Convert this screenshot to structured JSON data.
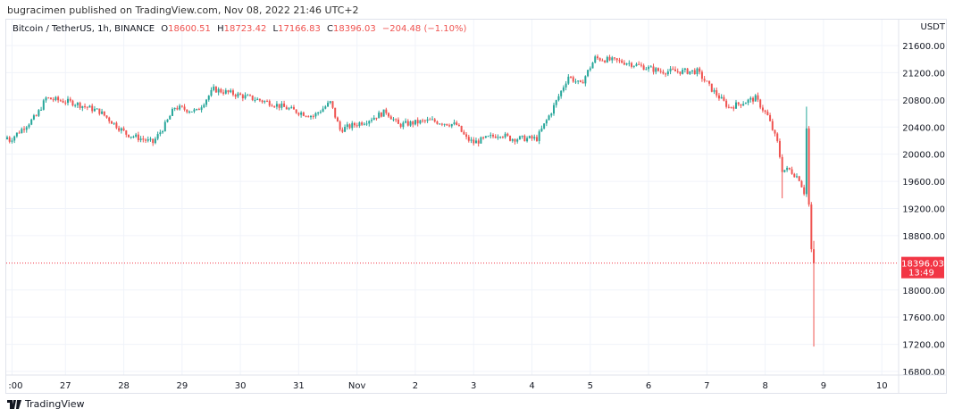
{
  "header": {
    "published": "bugracimen published on TradingView.com, Nov 08, 2022 21:46 UTC+2"
  },
  "legend": {
    "symbol": "Bitcoin / TetherUS, 1h, BINANCE",
    "o_label": "O",
    "o": "18600.51",
    "h_label": "H",
    "h": "18723.42",
    "l_label": "L",
    "l": "17166.83",
    "c_label": "C",
    "c": "18396.03",
    "change": "−204.48 (−1.10%)"
  },
  "footer": {
    "brand": "TradingView"
  },
  "colors": {
    "up": "#26a69a",
    "down": "#ef5350",
    "grid": "#f0f3fa",
    "last": "#f23645"
  },
  "chart_data": {
    "type": "candlestick",
    "interval": "1h",
    "currency": "USDT",
    "ylim": [
      16800,
      21800
    ],
    "yticks": [
      21600,
      21200,
      20800,
      20400,
      20000,
      19600,
      19200,
      18800,
      18000,
      17600,
      17200,
      16800
    ],
    "ytick_labels": [
      "21600.00",
      "21200.00",
      "20800.00",
      "20400.00",
      "20000.00",
      "19600.00",
      "19200.00",
      "18800.00",
      "18000.00",
      "17600.00",
      "17200.00",
      "16800.00"
    ],
    "xticks": [
      {
        "hour": 2,
        "label": ":00"
      },
      {
        "hour": 24,
        "label": "27"
      },
      {
        "hour": 48,
        "label": "28"
      },
      {
        "hour": 72,
        "label": "29"
      },
      {
        "hour": 96,
        "label": "30"
      },
      {
        "hour": 120,
        "label": "31"
      },
      {
        "hour": 144,
        "label": "Nov"
      },
      {
        "hour": 168,
        "label": "2"
      },
      {
        "hour": 192,
        "label": "3"
      },
      {
        "hour": 216,
        "label": "4"
      },
      {
        "hour": 240,
        "label": "5"
      },
      {
        "hour": 264,
        "label": "6"
      },
      {
        "hour": 288,
        "label": "7"
      },
      {
        "hour": 312,
        "label": "8"
      },
      {
        "hour": 336,
        "label": "9"
      },
      {
        "hour": 360,
        "label": "10"
      }
    ],
    "close_path": [
      [
        0,
        20250
      ],
      [
        1,
        20206
      ],
      [
        12,
        20560
      ],
      [
        16,
        20824
      ],
      [
        27,
        20760
      ],
      [
        38,
        20630
      ],
      [
        49,
        20300
      ],
      [
        60,
        20170
      ],
      [
        65,
        20430
      ],
      [
        69,
        20690
      ],
      [
        78,
        20630
      ],
      [
        85,
        20955
      ],
      [
        93,
        20890
      ],
      [
        108,
        20760
      ],
      [
        119,
        20630
      ],
      [
        126,
        20560
      ],
      [
        133,
        20760
      ],
      [
        137,
        20360
      ],
      [
        148,
        20495
      ],
      [
        156,
        20630
      ],
      [
        161,
        20430
      ],
      [
        174,
        20495
      ],
      [
        185,
        20430
      ],
      [
        189,
        20230
      ],
      [
        192,
        20170
      ],
      [
        203,
        20300
      ],
      [
        207,
        20230
      ],
      [
        218,
        20230
      ],
      [
        224,
        20630
      ],
      [
        231,
        21150
      ],
      [
        236,
        21020
      ],
      [
        242,
        21415
      ],
      [
        255,
        21350
      ],
      [
        269,
        21220
      ],
      [
        284,
        21220
      ],
      [
        290,
        20955
      ],
      [
        297,
        20690
      ],
      [
        308,
        20824
      ],
      [
        313,
        20560
      ],
      [
        317,
        20170
      ],
      [
        319,
        19770
      ],
      [
        322,
        19770
      ],
      [
        326,
        19640
      ],
      [
        328,
        19440
      ],
      [
        329,
        20360
      ],
      [
        330,
        19250
      ],
      [
        331,
        18600.51
      ]
    ],
    "last_candle": {
      "hour": 332,
      "open": 18600.51,
      "high": 18723.42,
      "low": 17166.83,
      "close": 18396.03
    },
    "last_price": {
      "label": "18396.03",
      "countdown": "13:49"
    }
  }
}
